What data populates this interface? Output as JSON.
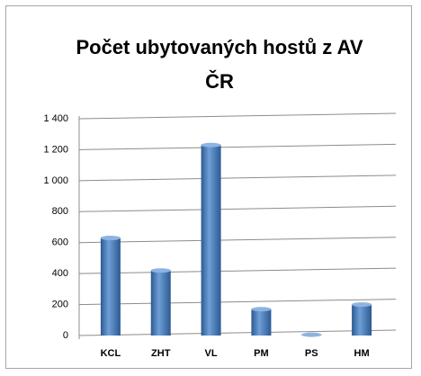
{
  "chart_data": {
    "type": "bar",
    "title": "Počet ubytovaných hostů z AV ČR",
    "categories": [
      "KCL",
      "ZHT",
      "VL",
      "PM",
      "PS",
      "HM"
    ],
    "values": [
      630,
      420,
      1230,
      170,
      5,
      200
    ],
    "color": "#4f81bd",
    "ylim": [
      0,
      1400
    ],
    "yticks": [
      0,
      200,
      400,
      600,
      800,
      {
        "value": 1000,
        "label": "1 000"
      },
      {
        "value": 1200,
        "label": "1 200"
      },
      {
        "value": 1400,
        "label": "1 400"
      }
    ],
    "grid": true
  }
}
